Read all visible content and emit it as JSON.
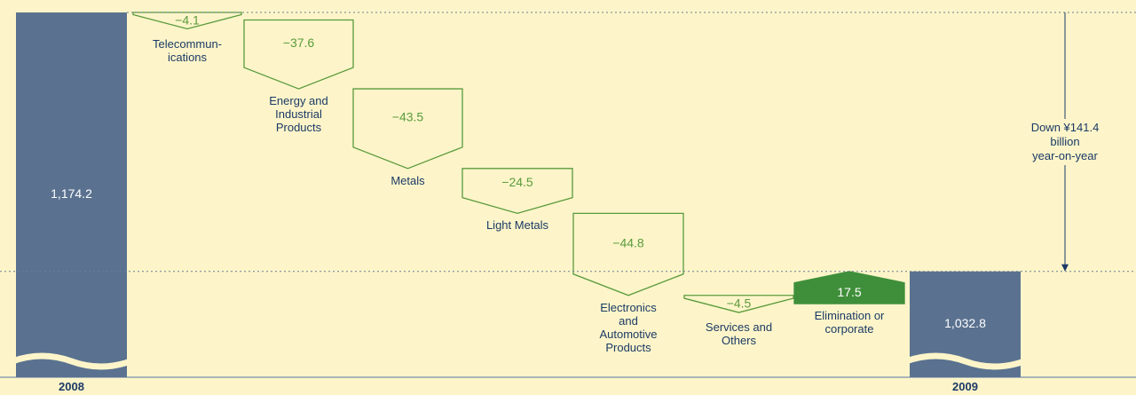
{
  "chart_data": {
    "type": "waterfall",
    "categories": [
      "2008",
      "Telecommun-\nications",
      "Energy and\nIndustrial\nProducts",
      "Metals",
      "Light Metals",
      "Electronics\nand\nAutomotive\nProducts",
      "Services and\nOthers",
      "Elimination or\ncorporate",
      "2009"
    ],
    "measure": [
      "total",
      "relative",
      "relative",
      "relative",
      "relative",
      "relative",
      "relative",
      "relative",
      "total"
    ],
    "values": [
      1174.2,
      -4.1,
      -37.6,
      -43.5,
      -24.5,
      -44.8,
      -4.5,
      17.5,
      1032.8
    ],
    "value_labels": [
      "1,174.2",
      "−4.1",
      "−37.6",
      "−43.5",
      "−24.5",
      "−44.8",
      "−4.5",
      "17.5",
      "1,032.8"
    ],
    "colors": {
      "total": "#5a7290",
      "decrease": "#5a9a3c",
      "increase": "#3f8f3a"
    },
    "ylim": [
      975,
      1181
    ],
    "annotation": "Down ¥141.4 billion\nyear-on-year"
  }
}
